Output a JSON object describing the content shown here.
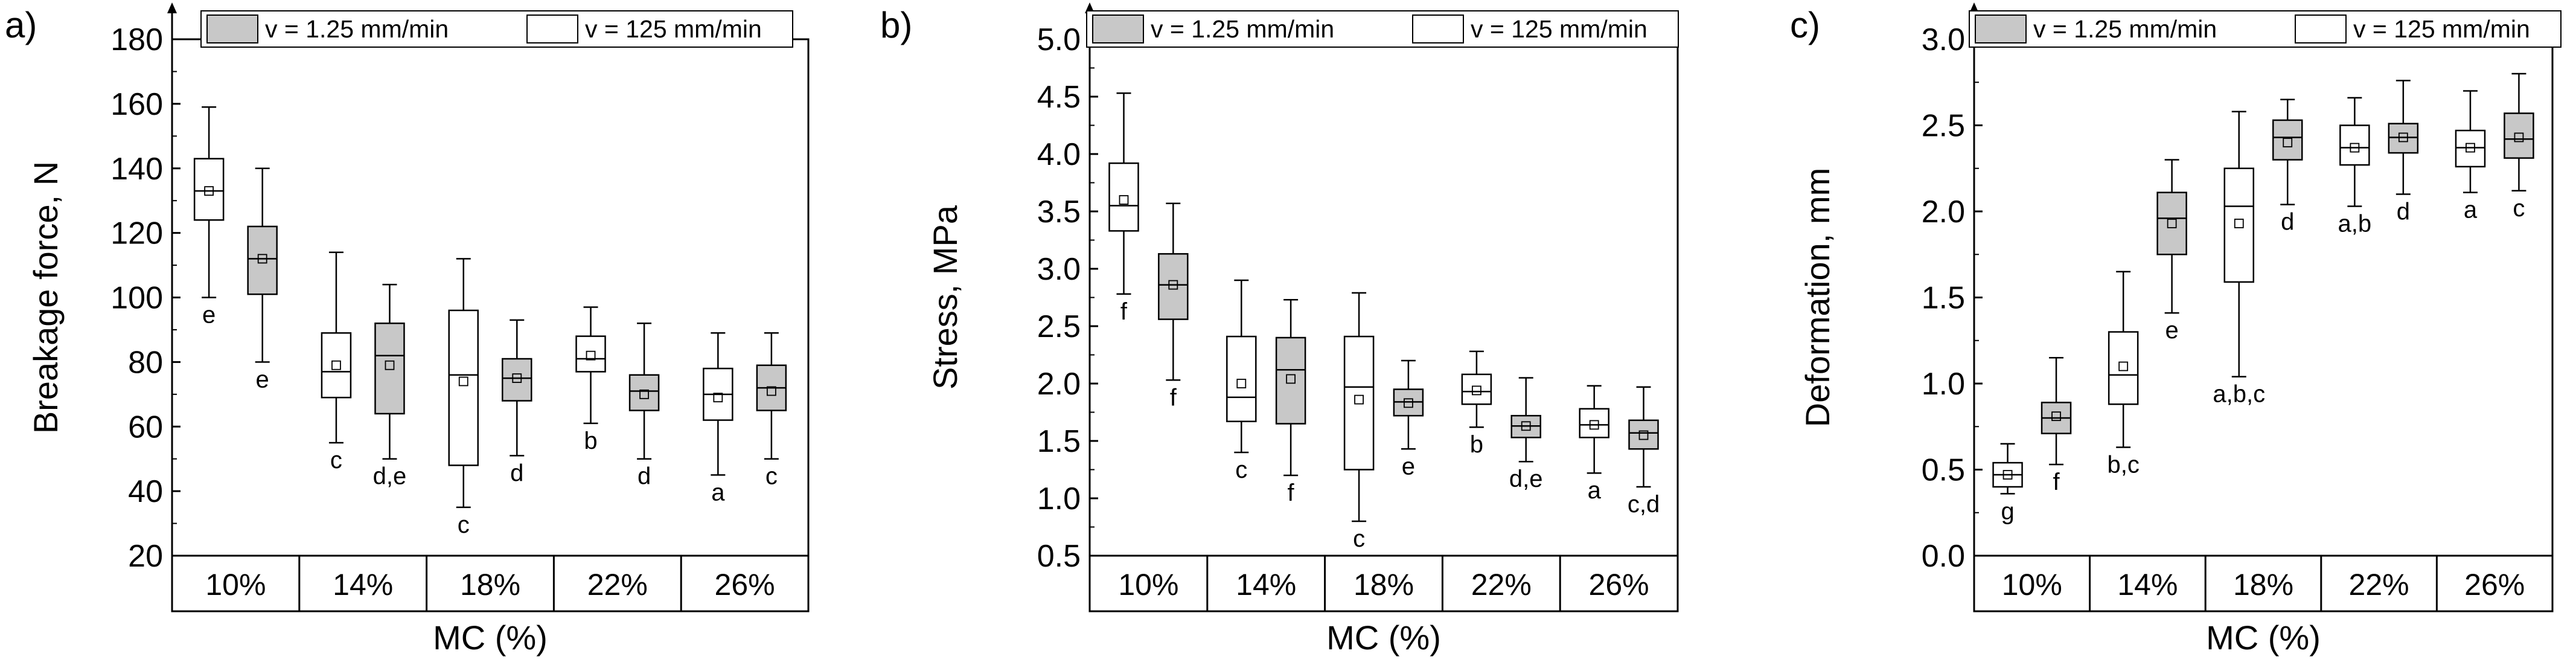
{
  "figure": {
    "description_label": "Box plots of breakage force, stress and deformation vs moisture content"
  },
  "colors": {
    "slow": "#c8c8c8",
    "fast": "#ffffff",
    "stroke": "#000000"
  },
  "chart_data": [
    {
      "type": "box",
      "panel_label": "a)",
      "xlabel": "MC (%)",
      "ylabel": "Breakage force, N",
      "ylim": [
        20,
        180
      ],
      "yticks": [
        20,
        40,
        60,
        80,
        100,
        120,
        140,
        160,
        180
      ],
      "ytick_labels": [
        "20",
        "40",
        "60",
        "80",
        "100",
        "120",
        "140",
        "160",
        "180"
      ],
      "categories": [
        "10%",
        "14%",
        "18%",
        "22%",
        "26%"
      ],
      "legend": [
        {
          "label": "v = 1.25 mm/min",
          "key": "slow"
        },
        {
          "label": "v = 125 mm/min",
          "key": "fast"
        }
      ],
      "boxes": [
        {
          "category": "10%",
          "series": "fast",
          "min": 100,
          "q1": 124,
          "median": 133,
          "q3": 143,
          "max": 159,
          "mean": 133,
          "letter": "e"
        },
        {
          "category": "10%",
          "series": "slow",
          "min": 80,
          "q1": 101,
          "median": 112,
          "q3": 122,
          "max": 140,
          "mean": 112,
          "letter": "e"
        },
        {
          "category": "14%",
          "series": "fast",
          "min": 55,
          "q1": 69,
          "median": 77,
          "q3": 89,
          "max": 114,
          "mean": 79,
          "letter": "c"
        },
        {
          "category": "14%",
          "series": "slow",
          "min": 50,
          "q1": 64,
          "median": 82,
          "q3": 92,
          "max": 104,
          "mean": 79,
          "letter": "d,e"
        },
        {
          "category": "18%",
          "series": "fast",
          "min": 35,
          "q1": 48,
          "median": 76,
          "q3": 96,
          "max": 112,
          "mean": 74,
          "letter": "c"
        },
        {
          "category": "18%",
          "series": "slow",
          "min": 51,
          "q1": 68,
          "median": 75,
          "q3": 81,
          "max": 93,
          "mean": 75,
          "letter": "d"
        },
        {
          "category": "22%",
          "series": "fast",
          "min": 61,
          "q1": 77,
          "median": 81,
          "q3": 88,
          "max": 97,
          "mean": 82,
          "letter": "b"
        },
        {
          "category": "22%",
          "series": "slow",
          "min": 50,
          "q1": 65,
          "median": 71,
          "q3": 76,
          "max": 92,
          "mean": 70,
          "letter": "d"
        },
        {
          "category": "26%",
          "series": "fast",
          "min": 45,
          "q1": 62,
          "median": 70,
          "q3": 78,
          "max": 89,
          "mean": 69,
          "letter": "a"
        },
        {
          "category": "26%",
          "series": "slow",
          "min": 50,
          "q1": 65,
          "median": 72,
          "q3": 79,
          "max": 89,
          "mean": 71,
          "letter": "c"
        }
      ]
    },
    {
      "type": "box",
      "panel_label": "b)",
      "xlabel": "MC (%)",
      "ylabel": "Stress, MPa",
      "ylim": [
        0.5,
        5.0
      ],
      "yticks": [
        0.5,
        1.0,
        1.5,
        2.0,
        2.5,
        3.0,
        3.5,
        4.0,
        4.5,
        5.0
      ],
      "ytick_labels": [
        "0.5",
        "1.0",
        "1.5",
        "2.0",
        "2.5",
        "3.0",
        "3.5",
        "4.0",
        "4.5",
        "5.0"
      ],
      "categories": [
        "10%",
        "14%",
        "18%",
        "22%",
        "26%"
      ],
      "legend": [
        {
          "label": "v = 1.25 mm/min",
          "key": "slow"
        },
        {
          "label": "v = 125 mm/min",
          "key": "fast"
        }
      ],
      "boxes": [
        {
          "category": "10%",
          "series": "fast",
          "min": 2.78,
          "q1": 3.33,
          "median": 3.55,
          "q3": 3.92,
          "max": 4.53,
          "mean": 3.6,
          "letter": "f"
        },
        {
          "category": "10%",
          "series": "slow",
          "min": 2.03,
          "q1": 2.56,
          "median": 2.86,
          "q3": 3.13,
          "max": 3.57,
          "mean": 2.86,
          "letter": "f"
        },
        {
          "category": "14%",
          "series": "fast",
          "min": 1.4,
          "q1": 1.67,
          "median": 1.88,
          "q3": 2.41,
          "max": 2.9,
          "mean": 2.0,
          "letter": "c"
        },
        {
          "category": "14%",
          "series": "slow",
          "min": 1.2,
          "q1": 1.65,
          "median": 2.12,
          "q3": 2.4,
          "max": 2.73,
          "mean": 2.04,
          "letter": "f"
        },
        {
          "category": "18%",
          "series": "fast",
          "min": 0.8,
          "q1": 1.25,
          "median": 1.97,
          "q3": 2.41,
          "max": 2.79,
          "mean": 1.86,
          "letter": "c"
        },
        {
          "category": "18%",
          "series": "slow",
          "min": 1.43,
          "q1": 1.72,
          "median": 1.84,
          "q3": 1.95,
          "max": 2.2,
          "mean": 1.83,
          "letter": "e"
        },
        {
          "category": "22%",
          "series": "fast",
          "min": 1.62,
          "q1": 1.82,
          "median": 1.93,
          "q3": 2.08,
          "max": 2.28,
          "mean": 1.94,
          "letter": "b"
        },
        {
          "category": "22%",
          "series": "slow",
          "min": 1.32,
          "q1": 1.53,
          "median": 1.63,
          "q3": 1.72,
          "max": 2.05,
          "mean": 1.63,
          "letter": "d,e"
        },
        {
          "category": "26%",
          "series": "fast",
          "min": 1.22,
          "q1": 1.53,
          "median": 1.64,
          "q3": 1.78,
          "max": 1.98,
          "mean": 1.64,
          "letter": "a"
        },
        {
          "category": "26%",
          "series": "slow",
          "min": 1.1,
          "q1": 1.43,
          "median": 1.57,
          "q3": 1.68,
          "max": 1.97,
          "mean": 1.55,
          "letter": "c,d"
        }
      ]
    },
    {
      "type": "box",
      "panel_label": "c)",
      "xlabel": "MC (%)",
      "ylabel": "Deformation, mm",
      "ylim": [
        0.0,
        3.0
      ],
      "yticks": [
        0.0,
        0.5,
        1.0,
        1.5,
        2.0,
        2.5,
        3.0
      ],
      "ytick_labels": [
        "0.0",
        "0.5",
        "1.0",
        "1.5",
        "2.0",
        "2.5",
        "3.0"
      ],
      "categories": [
        "10%",
        "14%",
        "18%",
        "22%",
        "26%"
      ],
      "legend": [
        {
          "label": "v = 1.25 mm/min",
          "key": "slow"
        },
        {
          "label": "v = 125 mm/min",
          "key": "fast"
        }
      ],
      "boxes": [
        {
          "category": "10%",
          "series": "fast",
          "min": 0.36,
          "q1": 0.4,
          "median": 0.47,
          "q3": 0.54,
          "max": 0.65,
          "mean": 0.47,
          "letter": "g"
        },
        {
          "category": "10%",
          "series": "slow",
          "min": 0.53,
          "q1": 0.71,
          "median": 0.8,
          "q3": 0.89,
          "max": 1.15,
          "mean": 0.81,
          "letter": "f"
        },
        {
          "category": "14%",
          "series": "fast",
          "min": 0.63,
          "q1": 0.88,
          "median": 1.05,
          "q3": 1.3,
          "max": 1.65,
          "mean": 1.1,
          "letter": "b,c"
        },
        {
          "category": "14%",
          "series": "slow",
          "min": 1.41,
          "q1": 1.75,
          "median": 1.96,
          "q3": 2.11,
          "max": 2.3,
          "mean": 1.93,
          "letter": "e"
        },
        {
          "category": "18%",
          "series": "fast",
          "min": 1.04,
          "q1": 1.59,
          "median": 2.03,
          "q3": 2.25,
          "max": 2.58,
          "mean": 1.93,
          "letter": "a,b,c"
        },
        {
          "category": "18%",
          "series": "slow",
          "min": 2.04,
          "q1": 2.3,
          "median": 2.43,
          "q3": 2.53,
          "max": 2.65,
          "mean": 2.4,
          "letter": "d"
        },
        {
          "category": "22%",
          "series": "fast",
          "min": 2.03,
          "q1": 2.27,
          "median": 2.37,
          "q3": 2.5,
          "max": 2.66,
          "mean": 2.37,
          "letter": "a,b"
        },
        {
          "category": "22%",
          "series": "slow",
          "min": 2.1,
          "q1": 2.34,
          "median": 2.43,
          "q3": 2.51,
          "max": 2.76,
          "mean": 2.43,
          "letter": "d"
        },
        {
          "category": "26%",
          "series": "fast",
          "min": 2.11,
          "q1": 2.26,
          "median": 2.37,
          "q3": 2.47,
          "max": 2.7,
          "mean": 2.37,
          "letter": "a"
        },
        {
          "category": "26%",
          "series": "slow",
          "min": 2.12,
          "q1": 2.31,
          "median": 2.42,
          "q3": 2.57,
          "max": 2.8,
          "mean": 2.43,
          "letter": "c"
        }
      ]
    }
  ]
}
